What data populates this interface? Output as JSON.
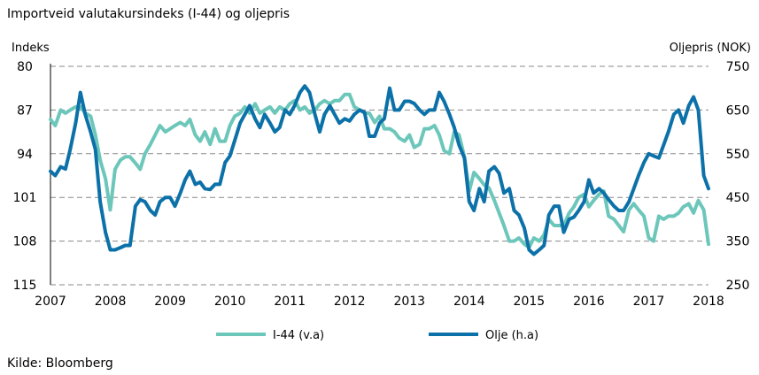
{
  "chart_data": {
    "type": "line",
    "title": "Importveid valutakursindeks (I-44) og oljepris",
    "left_axis_label": "Indeks",
    "right_axis_label": "Oljepris (NOK)",
    "source": "Kilde: Bloomberg",
    "x_ticks": [
      "2007",
      "2008",
      "2009",
      "2010",
      "2011",
      "2012",
      "2013",
      "2014",
      "2015",
      "2016",
      "2017",
      "2018"
    ],
    "x_range": [
      2007.0,
      2018.0
    ],
    "left_ticks": [
      "80",
      "87",
      "94",
      "101",
      "108",
      "115"
    ],
    "left_range": [
      80,
      115
    ],
    "left_inverted": true,
    "right_ticks": [
      "750",
      "650",
      "550",
      "450",
      "350",
      "250"
    ],
    "right_range": [
      250,
      750
    ],
    "grid": "horizontal-dashed",
    "legend_position": "bottom",
    "series": [
      {
        "name": "I-44 (v.a)",
        "axis": "left",
        "color": "#6CC7BA",
        "points": [
          [
            2007.0,
            88.5
          ],
          [
            2007.08,
            89.5
          ],
          [
            2007.17,
            87.0
          ],
          [
            2007.25,
            87.5
          ],
          [
            2007.33,
            87.0
          ],
          [
            2007.42,
            86.5
          ],
          [
            2007.5,
            86.5
          ],
          [
            2007.58,
            87.5
          ],
          [
            2007.67,
            88.0
          ],
          [
            2007.75,
            91.0
          ],
          [
            2007.83,
            95.0
          ],
          [
            2007.92,
            98.0
          ],
          [
            2008.0,
            103.0
          ],
          [
            2008.08,
            96.5
          ],
          [
            2008.17,
            95.0
          ],
          [
            2008.25,
            94.5
          ],
          [
            2008.33,
            94.5
          ],
          [
            2008.42,
            95.5
          ],
          [
            2008.5,
            96.5
          ],
          [
            2008.58,
            94.0
          ],
          [
            2008.67,
            92.5
          ],
          [
            2008.75,
            91.0
          ],
          [
            2008.83,
            89.5
          ],
          [
            2008.92,
            90.5
          ],
          [
            2009.0,
            90.0
          ],
          [
            2009.08,
            89.5
          ],
          [
            2009.17,
            89.0
          ],
          [
            2009.25,
            89.5
          ],
          [
            2009.33,
            88.5
          ],
          [
            2009.42,
            91.0
          ],
          [
            2009.5,
            92.0
          ],
          [
            2009.58,
            90.5
          ],
          [
            2009.67,
            92.5
          ],
          [
            2009.75,
            90.0
          ],
          [
            2009.83,
            92.0
          ],
          [
            2009.92,
            92.0
          ],
          [
            2010.0,
            89.5
          ],
          [
            2010.08,
            88.0
          ],
          [
            2010.17,
            87.5
          ],
          [
            2010.25,
            86.5
          ],
          [
            2010.33,
            87.5
          ],
          [
            2010.42,
            86.0
          ],
          [
            2010.5,
            87.5
          ],
          [
            2010.58,
            87.0
          ],
          [
            2010.67,
            86.5
          ],
          [
            2010.75,
            87.5
          ],
          [
            2010.83,
            86.5
          ],
          [
            2010.92,
            87.0
          ],
          [
            2011.0,
            86.0
          ],
          [
            2011.08,
            85.5
          ],
          [
            2011.17,
            87.0
          ],
          [
            2011.25,
            86.5
          ],
          [
            2011.33,
            87.5
          ],
          [
            2011.42,
            87.0
          ],
          [
            2011.5,
            86.0
          ],
          [
            2011.58,
            85.5
          ],
          [
            2011.67,
            86.0
          ],
          [
            2011.75,
            85.5
          ],
          [
            2011.83,
            85.5
          ],
          [
            2011.92,
            84.5
          ],
          [
            2012.0,
            84.5
          ],
          [
            2012.08,
            86.5
          ],
          [
            2012.17,
            87.0
          ],
          [
            2012.25,
            87.5
          ],
          [
            2012.33,
            87.5
          ],
          [
            2012.42,
            89.0
          ],
          [
            2012.5,
            88.0
          ],
          [
            2012.58,
            90.0
          ],
          [
            2012.67,
            90.0
          ],
          [
            2012.75,
            90.5
          ],
          [
            2012.83,
            91.5
          ],
          [
            2012.92,
            92.0
          ],
          [
            2013.0,
            91.0
          ],
          [
            2013.08,
            93.0
          ],
          [
            2013.17,
            92.5
          ],
          [
            2013.25,
            90.0
          ],
          [
            2013.33,
            90.0
          ],
          [
            2013.42,
            89.5
          ],
          [
            2013.5,
            91.0
          ],
          [
            2013.58,
            93.5
          ],
          [
            2013.67,
            94.0
          ],
          [
            2013.75,
            90.5
          ],
          [
            2013.83,
            91.0
          ],
          [
            2013.92,
            94.5
          ],
          [
            2014.0,
            100.0
          ],
          [
            2014.08,
            97.0
          ],
          [
            2014.17,
            98.0
          ],
          [
            2014.25,
            99.0
          ],
          [
            2014.33,
            99.5
          ],
          [
            2014.42,
            101.5
          ],
          [
            2014.5,
            103.5
          ],
          [
            2014.58,
            105.5
          ],
          [
            2014.67,
            108.0
          ],
          [
            2014.75,
            108.0
          ],
          [
            2014.83,
            107.5
          ],
          [
            2014.92,
            108.5
          ],
          [
            2015.0,
            109.0
          ],
          [
            2015.08,
            107.5
          ],
          [
            2015.17,
            108.0
          ],
          [
            2015.25,
            107.0
          ],
          [
            2015.33,
            104.5
          ],
          [
            2015.42,
            105.5
          ],
          [
            2015.5,
            105.5
          ],
          [
            2015.58,
            105.5
          ],
          [
            2015.67,
            103.5
          ],
          [
            2015.75,
            102.5
          ],
          [
            2015.83,
            101.0
          ],
          [
            2015.92,
            100.5
          ],
          [
            2016.0,
            102.5
          ],
          [
            2016.08,
            101.5
          ],
          [
            2016.17,
            100.5
          ],
          [
            2016.25,
            100.0
          ],
          [
            2016.33,
            104.0
          ],
          [
            2016.42,
            104.5
          ],
          [
            2016.5,
            105.5
          ],
          [
            2016.58,
            106.5
          ],
          [
            2016.67,
            103.0
          ],
          [
            2016.75,
            102.0
          ],
          [
            2016.83,
            103.0
          ],
          [
            2016.92,
            104.0
          ],
          [
            2017.0,
            107.5
          ],
          [
            2017.08,
            108.0
          ],
          [
            2017.17,
            104.0
          ],
          [
            2017.25,
            104.5
          ],
          [
            2017.33,
            104.0
          ],
          [
            2017.42,
            104.0
          ],
          [
            2017.5,
            103.5
          ],
          [
            2017.58,
            102.5
          ],
          [
            2017.67,
            102.0
          ],
          [
            2017.75,
            103.5
          ],
          [
            2017.83,
            101.5
          ],
          [
            2017.92,
            103.0
          ],
          [
            2018.0,
            108.5
          ]
        ]
      },
      {
        "name": "Olje  (h.a)",
        "axis": "right",
        "color": "#0C71A8",
        "points": [
          [
            2007.0,
            510
          ],
          [
            2007.08,
            500
          ],
          [
            2007.17,
            520
          ],
          [
            2007.25,
            515
          ],
          [
            2007.33,
            560
          ],
          [
            2007.42,
            620
          ],
          [
            2007.5,
            690
          ],
          [
            2007.58,
            640
          ],
          [
            2007.67,
            600
          ],
          [
            2007.75,
            560
          ],
          [
            2007.83,
            440
          ],
          [
            2007.92,
            370
          ],
          [
            2008.0,
            330
          ],
          [
            2008.08,
            330
          ],
          [
            2008.17,
            335
          ],
          [
            2008.25,
            340
          ],
          [
            2008.33,
            340
          ],
          [
            2008.42,
            430
          ],
          [
            2008.5,
            445
          ],
          [
            2008.58,
            440
          ],
          [
            2008.67,
            420
          ],
          [
            2008.75,
            410
          ],
          [
            2008.83,
            440
          ],
          [
            2008.92,
            450
          ],
          [
            2009.0,
            450
          ],
          [
            2009.08,
            430
          ],
          [
            2009.17,
            460
          ],
          [
            2009.25,
            490
          ],
          [
            2009.33,
            510
          ],
          [
            2009.42,
            480
          ],
          [
            2009.5,
            485
          ],
          [
            2009.58,
            470
          ],
          [
            2009.67,
            468
          ],
          [
            2009.75,
            480
          ],
          [
            2009.83,
            480
          ],
          [
            2009.92,
            530
          ],
          [
            2010.0,
            545
          ],
          [
            2010.08,
            580
          ],
          [
            2010.17,
            620
          ],
          [
            2010.25,
            640
          ],
          [
            2010.33,
            660
          ],
          [
            2010.42,
            630
          ],
          [
            2010.5,
            610
          ],
          [
            2010.58,
            640
          ],
          [
            2010.67,
            620
          ],
          [
            2010.75,
            600
          ],
          [
            2010.83,
            610
          ],
          [
            2010.92,
            650
          ],
          [
            2011.0,
            640
          ],
          [
            2011.08,
            660
          ],
          [
            2011.17,
            690
          ],
          [
            2011.25,
            705
          ],
          [
            2011.33,
            690
          ],
          [
            2011.42,
            640
          ],
          [
            2011.5,
            600
          ],
          [
            2011.58,
            640
          ],
          [
            2011.67,
            660
          ],
          [
            2011.75,
            640
          ],
          [
            2011.83,
            620
          ],
          [
            2011.92,
            630
          ],
          [
            2012.0,
            625
          ],
          [
            2012.08,
            640
          ],
          [
            2012.17,
            650
          ],
          [
            2012.25,
            645
          ],
          [
            2012.33,
            590
          ],
          [
            2012.42,
            590
          ],
          [
            2012.5,
            620
          ],
          [
            2012.58,
            630
          ],
          [
            2012.67,
            700
          ],
          [
            2012.75,
            650
          ],
          [
            2012.83,
            650
          ],
          [
            2012.92,
            670
          ],
          [
            2013.0,
            670
          ],
          [
            2013.08,
            665
          ],
          [
            2013.17,
            650
          ],
          [
            2013.25,
            640
          ],
          [
            2013.33,
            650
          ],
          [
            2013.42,
            650
          ],
          [
            2013.5,
            690
          ],
          [
            2013.58,
            670
          ],
          [
            2013.67,
            640
          ],
          [
            2013.75,
            610
          ],
          [
            2013.83,
            570
          ],
          [
            2013.92,
            540
          ],
          [
            2014.0,
            440
          ],
          [
            2014.08,
            420
          ],
          [
            2014.17,
            470
          ],
          [
            2014.25,
            440
          ],
          [
            2014.33,
            510
          ],
          [
            2014.42,
            520
          ],
          [
            2014.5,
            505
          ],
          [
            2014.58,
            460
          ],
          [
            2014.67,
            470
          ],
          [
            2014.75,
            420
          ],
          [
            2014.83,
            410
          ],
          [
            2014.92,
            380
          ],
          [
            2015.0,
            330
          ],
          [
            2015.08,
            320
          ],
          [
            2015.17,
            330
          ],
          [
            2015.25,
            340
          ],
          [
            2015.33,
            410
          ],
          [
            2015.42,
            430
          ],
          [
            2015.5,
            430
          ],
          [
            2015.58,
            370
          ],
          [
            2015.67,
            400
          ],
          [
            2015.75,
            405
          ],
          [
            2015.83,
            420
          ],
          [
            2015.92,
            440
          ],
          [
            2016.0,
            490
          ],
          [
            2016.08,
            460
          ],
          [
            2016.17,
            470
          ],
          [
            2016.25,
            460
          ],
          [
            2016.33,
            445
          ],
          [
            2016.42,
            430
          ],
          [
            2016.5,
            420
          ],
          [
            2016.58,
            420
          ],
          [
            2016.67,
            440
          ],
          [
            2016.75,
            470
          ],
          [
            2016.83,
            500
          ],
          [
            2016.92,
            530
          ],
          [
            2017.0,
            550
          ],
          [
            2017.08,
            545
          ],
          [
            2017.17,
            540
          ],
          [
            2017.25,
            570
          ],
          [
            2017.33,
            600
          ],
          [
            2017.42,
            640
          ],
          [
            2017.5,
            650
          ],
          [
            2017.58,
            620
          ],
          [
            2017.67,
            660
          ],
          [
            2017.75,
            680
          ],
          [
            2017.83,
            650
          ],
          [
            2017.92,
            500
          ],
          [
            2018.0,
            470
          ]
        ]
      }
    ]
  }
}
